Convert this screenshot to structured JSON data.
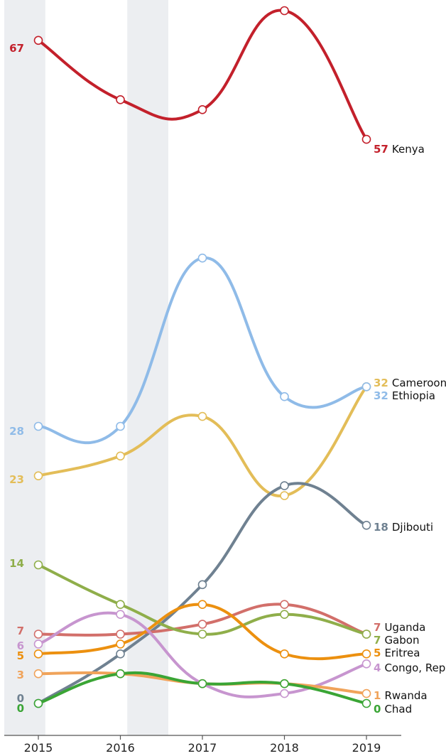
{
  "chart_data": {
    "type": "line",
    "x": [
      "2015",
      "2016",
      "2017",
      "2018",
      "2019"
    ],
    "ylim": [
      0,
      70
    ],
    "grid": false,
    "shaded_bands": [
      [
        "2015",
        "2015.5"
      ],
      [
        "2016.5",
        "2017"
      ]
    ],
    "series": [
      {
        "name": "Kenya",
        "values": [
          67,
          61,
          60,
          70,
          57
        ],
        "color": "#c3202b"
      },
      {
        "name": "Cameroon",
        "values": [
          23,
          25,
          29,
          21,
          32
        ],
        "color": "#e3bd58"
      },
      {
        "name": "Ethiopia",
        "values": [
          28,
          28,
          45,
          31,
          32
        ],
        "color": "#8fbbe8"
      },
      {
        "name": "Djibouti",
        "values": [
          0,
          5,
          12,
          22,
          18
        ],
        "color": "#6f8191"
      },
      {
        "name": "Uganda",
        "values": [
          7,
          7,
          8,
          10,
          7
        ],
        "color": "#d26f6a"
      },
      {
        "name": "Gabon",
        "values": [
          14,
          10,
          7,
          9,
          7
        ],
        "color": "#8fae4a"
      },
      {
        "name": "Eritrea",
        "values": [
          5,
          6,
          10,
          5,
          5
        ],
        "color": "#ec900f"
      },
      {
        "name": "Congo, Rep.",
        "values": [
          6,
          9,
          2,
          1,
          4
        ],
        "color": "#c795cf"
      },
      {
        "name": "Rwanda",
        "values": [
          3,
          3,
          2,
          2,
          1
        ],
        "color": "#f0a35a"
      },
      {
        "name": "Chad",
        "values": [
          0,
          3,
          2,
          2,
          0
        ],
        "color": "#3aa535"
      }
    ],
    "start_labels": [
      {
        "text": "67",
        "color": "#c3202b"
      },
      {
        "text": "28",
        "color": "#8fbbe8"
      },
      {
        "text": "23",
        "color": "#e3bd58"
      },
      {
        "text": "14",
        "color": "#8fae4a"
      },
      {
        "text": "7",
        "color": "#d26f6a"
      },
      {
        "text": "6",
        "color": "#c795cf"
      },
      {
        "text": "5",
        "color": "#ec900f"
      },
      {
        "text": "3",
        "color": "#f0a35a"
      },
      {
        "text": "0",
        "color": "#6f8191"
      },
      {
        "text": "0",
        "color": "#3aa535"
      }
    ],
    "end_labels": [
      {
        "value": "57",
        "name": "Kenya",
        "color": "#c3202b"
      },
      {
        "value": "32",
        "name": "Cameroon",
        "color": "#e3bd58"
      },
      {
        "value": "32",
        "name": "Ethiopia",
        "color": "#8fbbe8"
      },
      {
        "value": "18",
        "name": "Djibouti",
        "color": "#6f8191"
      },
      {
        "value": "7",
        "name": "Uganda",
        "color": "#d26f6a"
      },
      {
        "value": "7",
        "name": "Gabon",
        "color": "#8fae4a"
      },
      {
        "value": "5",
        "name": "Eritrea",
        "color": "#ec900f"
      },
      {
        "value": "4",
        "name": "Congo, Rep.",
        "color": "#c795cf"
      },
      {
        "value": "1",
        "name": "Rwanda",
        "color": "#f0a35a"
      },
      {
        "value": "0",
        "name": "Chad",
        "color": "#3aa535"
      }
    ]
  }
}
